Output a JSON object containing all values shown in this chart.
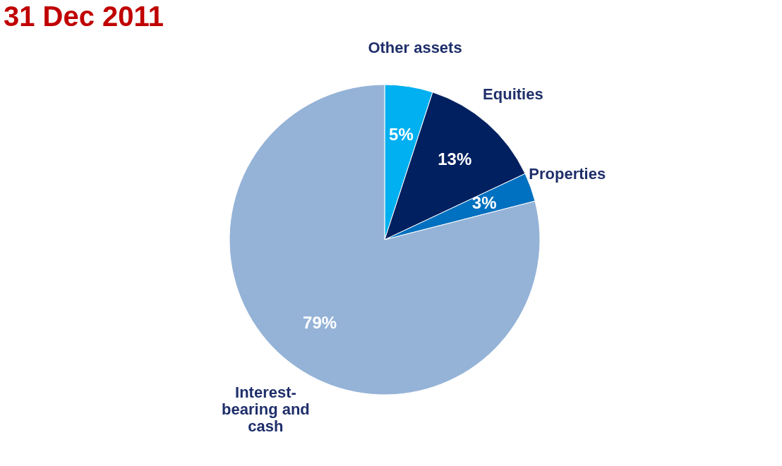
{
  "chart_data": {
    "type": "pie",
    "title": "31 Dec 2011",
    "categories": [
      "Other assets",
      "Equities",
      "Properties",
      "Interest-bearing and cash"
    ],
    "values": [
      5,
      13,
      3,
      79
    ],
    "colors": [
      "#00b0f0",
      "#002060",
      "#0070c0",
      "#95b3d7"
    ],
    "value_labels": [
      "5%",
      "13%",
      "3%",
      "79%"
    ],
    "legend": false
  }
}
